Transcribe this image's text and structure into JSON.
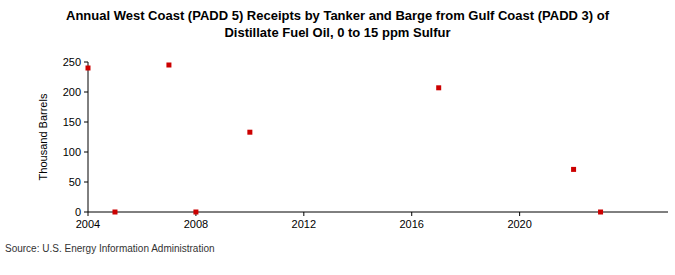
{
  "chart_data": {
    "type": "scatter",
    "title": "Annual West Coast (PADD 5) Receipts by Tanker and Barge from Gulf Coast (PADD 3) of Distillate Fuel Oil, 0 to 15 ppm Sulfur",
    "y_label": "Thousand Barrels",
    "source": "Source: U.S. Energy Information Administration",
    "x": [
      2004,
      2005,
      2007,
      2008,
      2010,
      2017,
      2022,
      2023
    ],
    "values": [
      240,
      0,
      245,
      0,
      133,
      207,
      71,
      0
    ],
    "color": "#cc0000",
    "marker": "square",
    "xlim": [
      2004,
      2025.5
    ],
    "xticks": [
      2004,
      2008,
      2012,
      2016,
      2020
    ],
    "ylim": [
      0,
      250
    ],
    "yticks": [
      0,
      50,
      100,
      150,
      200,
      250
    ],
    "grid": false
  }
}
